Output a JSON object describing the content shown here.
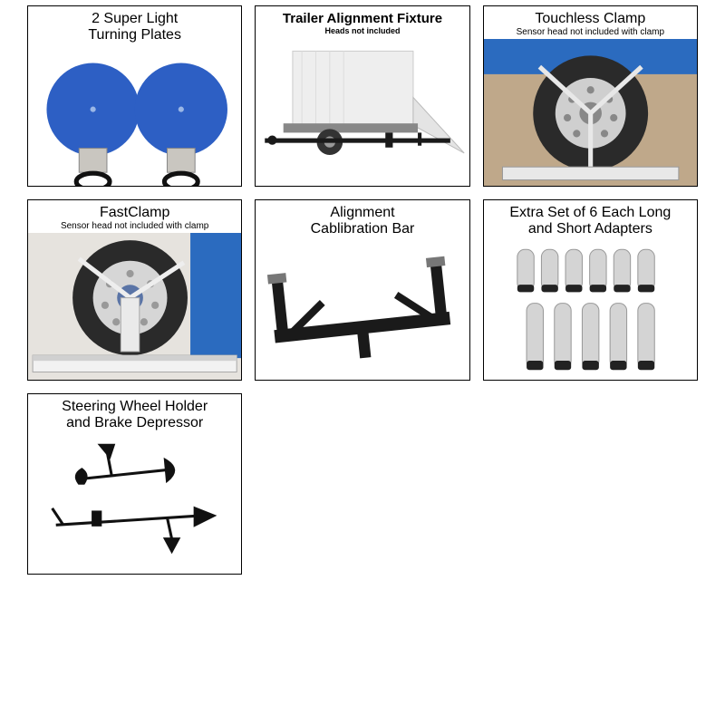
{
  "cards": [
    {
      "title": "2 Super Light\nTurning Plates",
      "sub": ""
    },
    {
      "title": "Trailer Alignment Fixture",
      "sub": "Heads not included"
    },
    {
      "title": "Touchless Clamp",
      "sub": "Sensor head not included with clamp"
    },
    {
      "title": "FastClamp",
      "sub": "Sensor head not included with clamp"
    },
    {
      "title": "Alignment\nCablibration Bar",
      "sub": ""
    },
    {
      "title": "Extra Set of 6 Each Long\nand Short Adapters",
      "sub": ""
    },
    {
      "title": "Steering Wheel Holder\nand Brake Depressor",
      "sub": ""
    }
  ],
  "colors": {
    "plate_blue": "#2d5fc4",
    "plate_base": "#c9c6c0",
    "tire": "#2a2a2a",
    "hub": "#cfcfcf",
    "truck_blue": "#2b6bbf",
    "ground_tan": "#bfa88a",
    "shop_floor": "#e6e3de",
    "cal_bar": "#1a1a1a",
    "adapter": "#d4d4d4",
    "adapter_cap": "#222",
    "trailer_body": "#555",
    "steel": "#bfbfbf"
  }
}
